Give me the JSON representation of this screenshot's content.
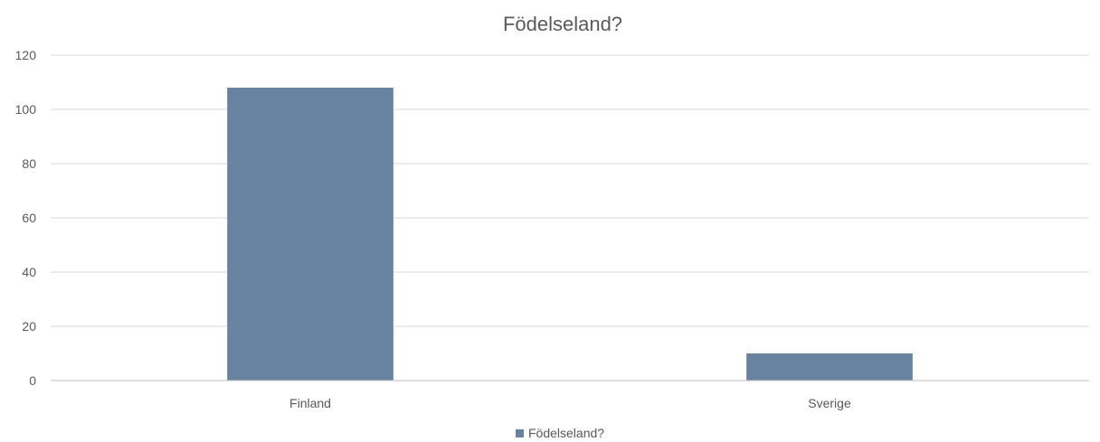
{
  "chart_data": {
    "type": "bar",
    "title": "Födelseland?",
    "xlabel": "",
    "ylabel": "",
    "categories": [
      "Finland",
      "Sverige"
    ],
    "series": [
      {
        "name": "Födelseland?",
        "values": [
          108,
          10
        ],
        "color": "#6783a0"
      }
    ],
    "ylim": [
      0,
      120
    ],
    "yticks": [
      0,
      20,
      40,
      60,
      80,
      100,
      120
    ],
    "grid": true,
    "legend": "bottom"
  }
}
